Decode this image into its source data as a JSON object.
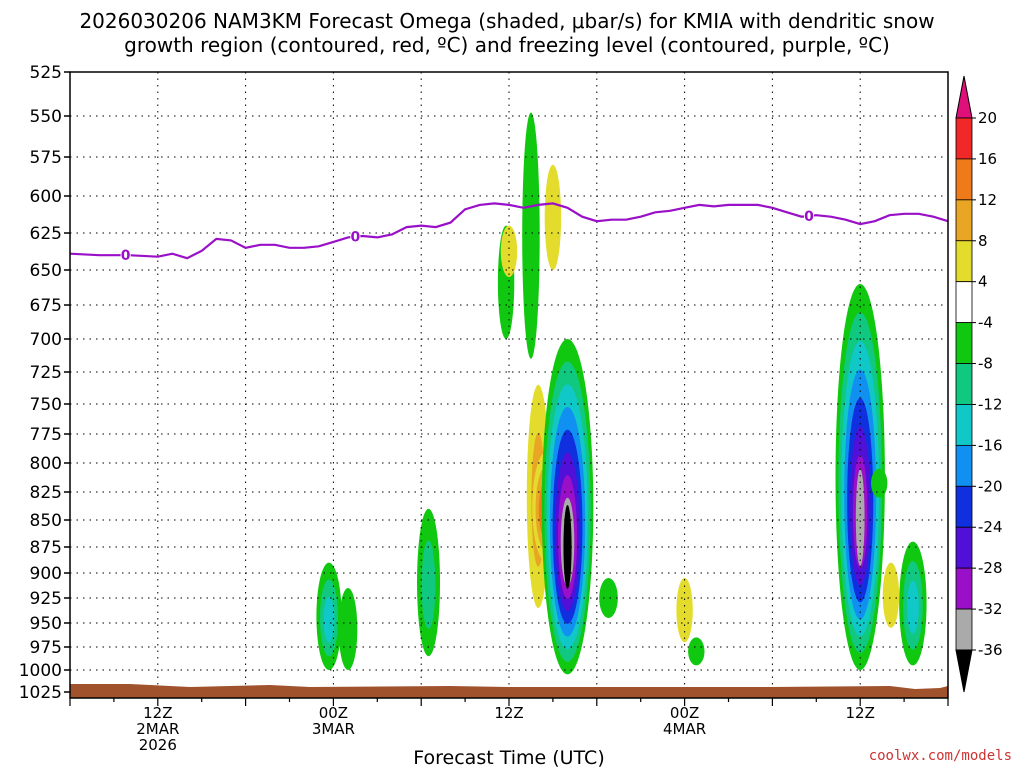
{
  "chart_data": {
    "type": "heatmap",
    "title_line1": "2026030206 NAM3KM Forecast Omega (shaded, μbar/s) for KMIA with dendritic snow",
    "title_line2": "growth region (contoured, red, ºC) and freezing level (contoured, purple, ºC)",
    "xlabel": "Forecast Time (UTC)",
    "ylabel": "",
    "credit": "coolwx.com/models",
    "y_ticks": [
      525,
      550,
      575,
      600,
      625,
      650,
      675,
      700,
      725,
      750,
      775,
      800,
      825,
      850,
      875,
      900,
      925,
      950,
      975,
      1000,
      1025
    ],
    "x_range_hours": [
      0,
      60
    ],
    "x_ticks": [
      {
        "hour": 6,
        "lines": [
          "12Z",
          "2MAR",
          "2026"
        ]
      },
      {
        "hour": 18,
        "lines": [
          "00Z",
          "3MAR"
        ]
      },
      {
        "hour": 30,
        "lines": [
          "12Z"
        ]
      },
      {
        "hour": 42,
        "lines": [
          "00Z",
          "4MAR"
        ]
      },
      {
        "hour": 54,
        "lines": [
          "12Z"
        ]
      }
    ],
    "colorbar": {
      "labels": [
        "20",
        "16",
        "12",
        "8",
        "4",
        "-4",
        "-8",
        "-12",
        "-16",
        "-20",
        "-24",
        "-28",
        "-32",
        "-36"
      ],
      "top_color": "#e0107a",
      "bottom_color": "#000000",
      "colors": [
        "#f02828",
        "#ee7a1a",
        "#e8a624",
        "#e4dc2c",
        "#ffffff",
        "#10c810",
        "#10c880",
        "#10c8c8",
        "#1090f0",
        "#1030e0",
        "#5010d8",
        "#9a10c8",
        "#aaaaaa"
      ]
    },
    "freezing_level": {
      "label": "0",
      "label_hours": [
        3.8,
        19.5,
        50.5
      ],
      "points": [
        [
          0,
          639
        ],
        [
          2,
          640
        ],
        [
          4,
          640
        ],
        [
          6,
          641
        ],
        [
          7,
          639
        ],
        [
          8,
          642
        ],
        [
          9,
          637
        ],
        [
          10,
          629
        ],
        [
          11,
          630
        ],
        [
          12,
          635
        ],
        [
          13,
          633
        ],
        [
          14,
          633
        ],
        [
          15,
          635
        ],
        [
          16,
          635
        ],
        [
          17,
          634
        ],
        [
          18,
          631
        ],
        [
          19,
          628
        ],
        [
          20,
          627
        ],
        [
          21,
          628
        ],
        [
          22,
          626
        ],
        [
          23,
          621
        ],
        [
          24,
          620
        ],
        [
          25,
          621
        ],
        [
          26,
          618
        ],
        [
          27,
          609
        ],
        [
          28,
          606
        ],
        [
          29,
          605
        ],
        [
          30,
          606
        ],
        [
          31,
          608
        ],
        [
          32,
          606
        ],
        [
          33,
          605
        ],
        [
          34,
          608
        ],
        [
          35,
          614
        ],
        [
          36,
          617
        ],
        [
          37,
          616
        ],
        [
          38,
          616
        ],
        [
          39,
          614
        ],
        [
          40,
          611
        ],
        [
          41,
          610
        ],
        [
          42,
          608
        ],
        [
          43,
          606
        ],
        [
          44,
          607
        ],
        [
          45,
          606
        ],
        [
          46,
          606
        ],
        [
          47,
          606
        ],
        [
          48,
          608
        ],
        [
          49,
          611
        ],
        [
          50,
          614
        ],
        [
          51,
          613
        ],
        [
          52,
          614
        ],
        [
          53,
          616
        ],
        [
          54,
          619
        ],
        [
          55,
          617
        ],
        [
          56,
          613
        ],
        [
          57,
          612
        ],
        [
          58,
          612
        ],
        [
          59,
          614
        ],
        [
          60,
          617
        ]
      ]
    },
    "omega_features": [
      {
        "hour": 29.8,
        "p_top": 620,
        "p_bot": 700,
        "value": -4
      },
      {
        "hour": 30.0,
        "p_top": 620,
        "p_bot": 655,
        "value": 4
      },
      {
        "hour": 31.5,
        "p_top": 548,
        "p_bot": 715,
        "value": -5
      },
      {
        "hour": 33.0,
        "p_top": 580,
        "p_bot": 650,
        "value": 4
      },
      {
        "hour": 24.5,
        "p_top": 840,
        "p_bot": 985,
        "value": -10
      },
      {
        "hour": 32.0,
        "p_top": 735,
        "p_bot": 935,
        "value": 10
      },
      {
        "hour": 32.6,
        "p_top": 790,
        "p_bot": 890,
        "value": 16
      },
      {
        "hour": 34.0,
        "p_top": 700,
        "p_bot": 1005,
        "value": -36
      },
      {
        "hour": 36.8,
        "p_top": 905,
        "p_bot": 945,
        "value": -6
      },
      {
        "hour": 17.7,
        "p_top": 890,
        "p_bot": 1000,
        "value": -12
      },
      {
        "hour": 19.0,
        "p_top": 915,
        "p_bot": 1000,
        "value": -6
      },
      {
        "hour": 42.0,
        "p_top": 905,
        "p_bot": 970,
        "value": 4
      },
      {
        "hour": 42.8,
        "p_top": 965,
        "p_bot": 995,
        "value": -4
      },
      {
        "hour": 54.0,
        "p_top": 660,
        "p_bot": 1000,
        "value": -34
      },
      {
        "hour": 55.3,
        "p_top": 805,
        "p_bot": 830,
        "value": -4
      },
      {
        "hour": 56.1,
        "p_top": 890,
        "p_bot": 955,
        "value": 4
      },
      {
        "hour": 57.6,
        "p_top": 870,
        "p_bot": 995,
        "value": -14
      }
    ],
    "terrain_color": "#a0522d"
  }
}
